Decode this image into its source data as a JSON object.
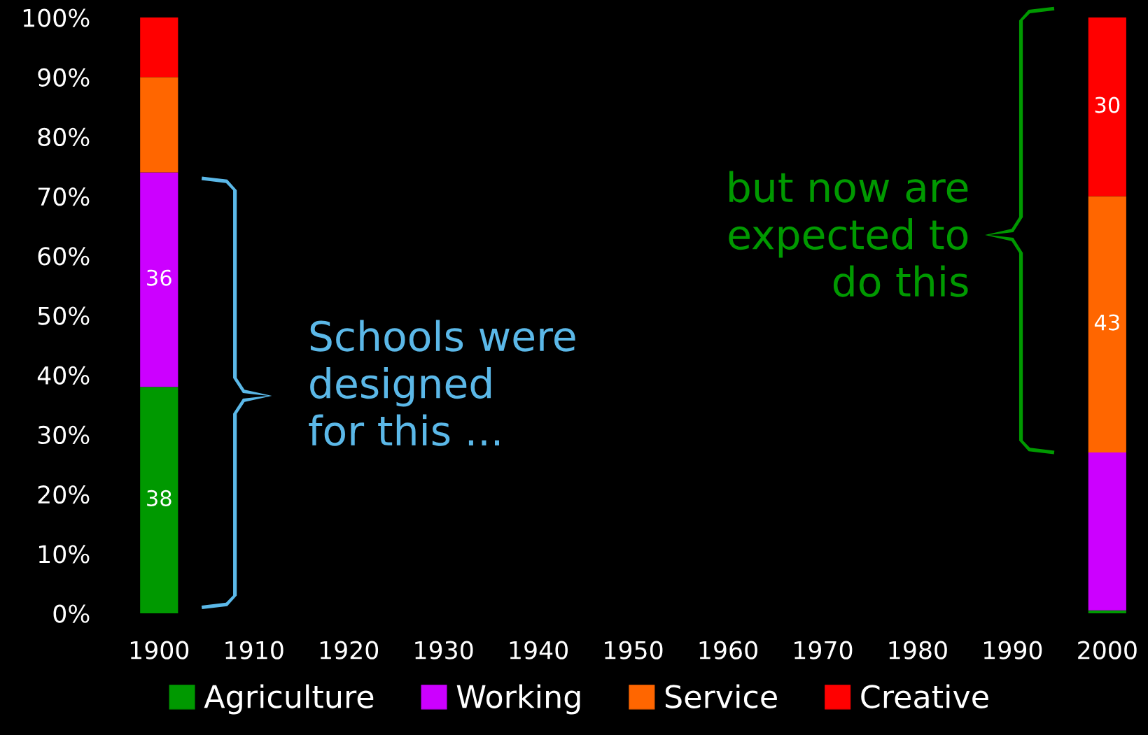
{
  "chart_data": {
    "type": "bar",
    "stacked": true,
    "categories": [
      "1900",
      "1910",
      "1920",
      "1930",
      "1940",
      "1950",
      "1960",
      "1970",
      "1980",
      "1990",
      "2000"
    ],
    "series": [
      {
        "name": "Agriculture",
        "color": "#009900",
        "values": [
          38,
          null,
          null,
          null,
          null,
          null,
          null,
          null,
          null,
          null,
          0.5
        ],
        "value_labels": [
          "38",
          null,
          null,
          null,
          null,
          null,
          null,
          null,
          null,
          null,
          null
        ]
      },
      {
        "name": "Working",
        "color": "#cc00ff",
        "values": [
          36,
          null,
          null,
          null,
          null,
          null,
          null,
          null,
          null,
          null,
          26.5
        ],
        "value_labels": [
          "36",
          null,
          null,
          null,
          null,
          null,
          null,
          null,
          null,
          null,
          null
        ]
      },
      {
        "name": "Service",
        "color": "#ff6600",
        "values": [
          16,
          null,
          null,
          null,
          null,
          null,
          null,
          null,
          null,
          null,
          43
        ],
        "value_labels": [
          null,
          null,
          null,
          null,
          null,
          null,
          null,
          null,
          null,
          null,
          "43"
        ]
      },
      {
        "name": "Creative",
        "color": "#ff0000",
        "values": [
          10,
          null,
          null,
          null,
          null,
          null,
          null,
          null,
          null,
          null,
          30
        ],
        "value_labels": [
          null,
          null,
          null,
          null,
          null,
          null,
          null,
          null,
          null,
          null,
          "30"
        ]
      }
    ],
    "ylim": [
      0,
      100
    ],
    "yticks": [
      {
        "value": 0,
        "label": "0%"
      },
      {
        "value": 10,
        "label": "10%"
      },
      {
        "value": 20,
        "label": "20%"
      },
      {
        "value": 30,
        "label": "30%"
      },
      {
        "value": 40,
        "label": "40%"
      },
      {
        "value": 50,
        "label": "50%"
      },
      {
        "value": 60,
        "label": "60%"
      },
      {
        "value": 70,
        "label": "70%"
      },
      {
        "value": 80,
        "label": "80%"
      },
      {
        "value": 90,
        "label": "90%"
      },
      {
        "value": 100,
        "label": "100%"
      }
    ],
    "annotations": [
      "Schools were\ndesigned\nfor this ...",
      "but now are\nexpected to\ndo this"
    ],
    "grid": false,
    "legend": "bottom"
  }
}
